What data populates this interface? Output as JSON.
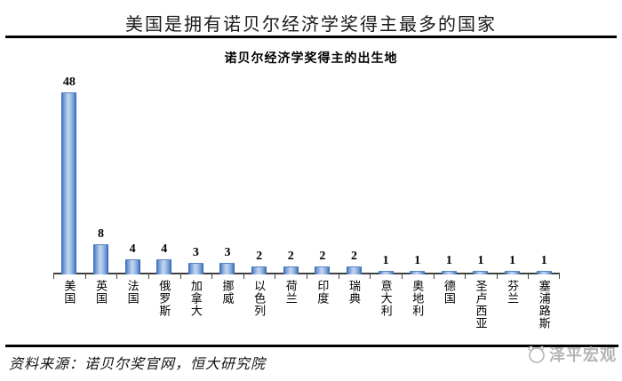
{
  "header": {
    "title": "美国是拥有诺贝尔经济学奖得主最多的国家"
  },
  "chart_data": {
    "type": "bar",
    "title": "诺贝尔经济学奖得主的出生地",
    "categories": [
      "美国",
      "英国",
      "法国",
      "俄罗斯",
      "加拿大",
      "挪威",
      "以色列",
      "荷兰",
      "印度",
      "瑞典",
      "意大利",
      "奥地利",
      "德国",
      "圣卢西亚",
      "芬兰",
      "塞浦路斯"
    ],
    "values": [
      48,
      8,
      4,
      4,
      3,
      3,
      2,
      2,
      2,
      2,
      1,
      1,
      1,
      1,
      1,
      1
    ],
    "xlabel": "",
    "ylabel": "",
    "ylim": [
      0,
      50
    ],
    "grid": false,
    "legend": false,
    "data_labels": true,
    "bar_color_edge": "#2e62ae",
    "bar_color_mid": "#6f9bd2",
    "bar_color_center": "#c6d6ef",
    "axis_color": "#404040"
  },
  "footer": {
    "source_label": "资料来源：诺贝尔奖官网，恒大研究院",
    "brand": "泽平宏观",
    "brand_color": "#b4b4b4"
  }
}
